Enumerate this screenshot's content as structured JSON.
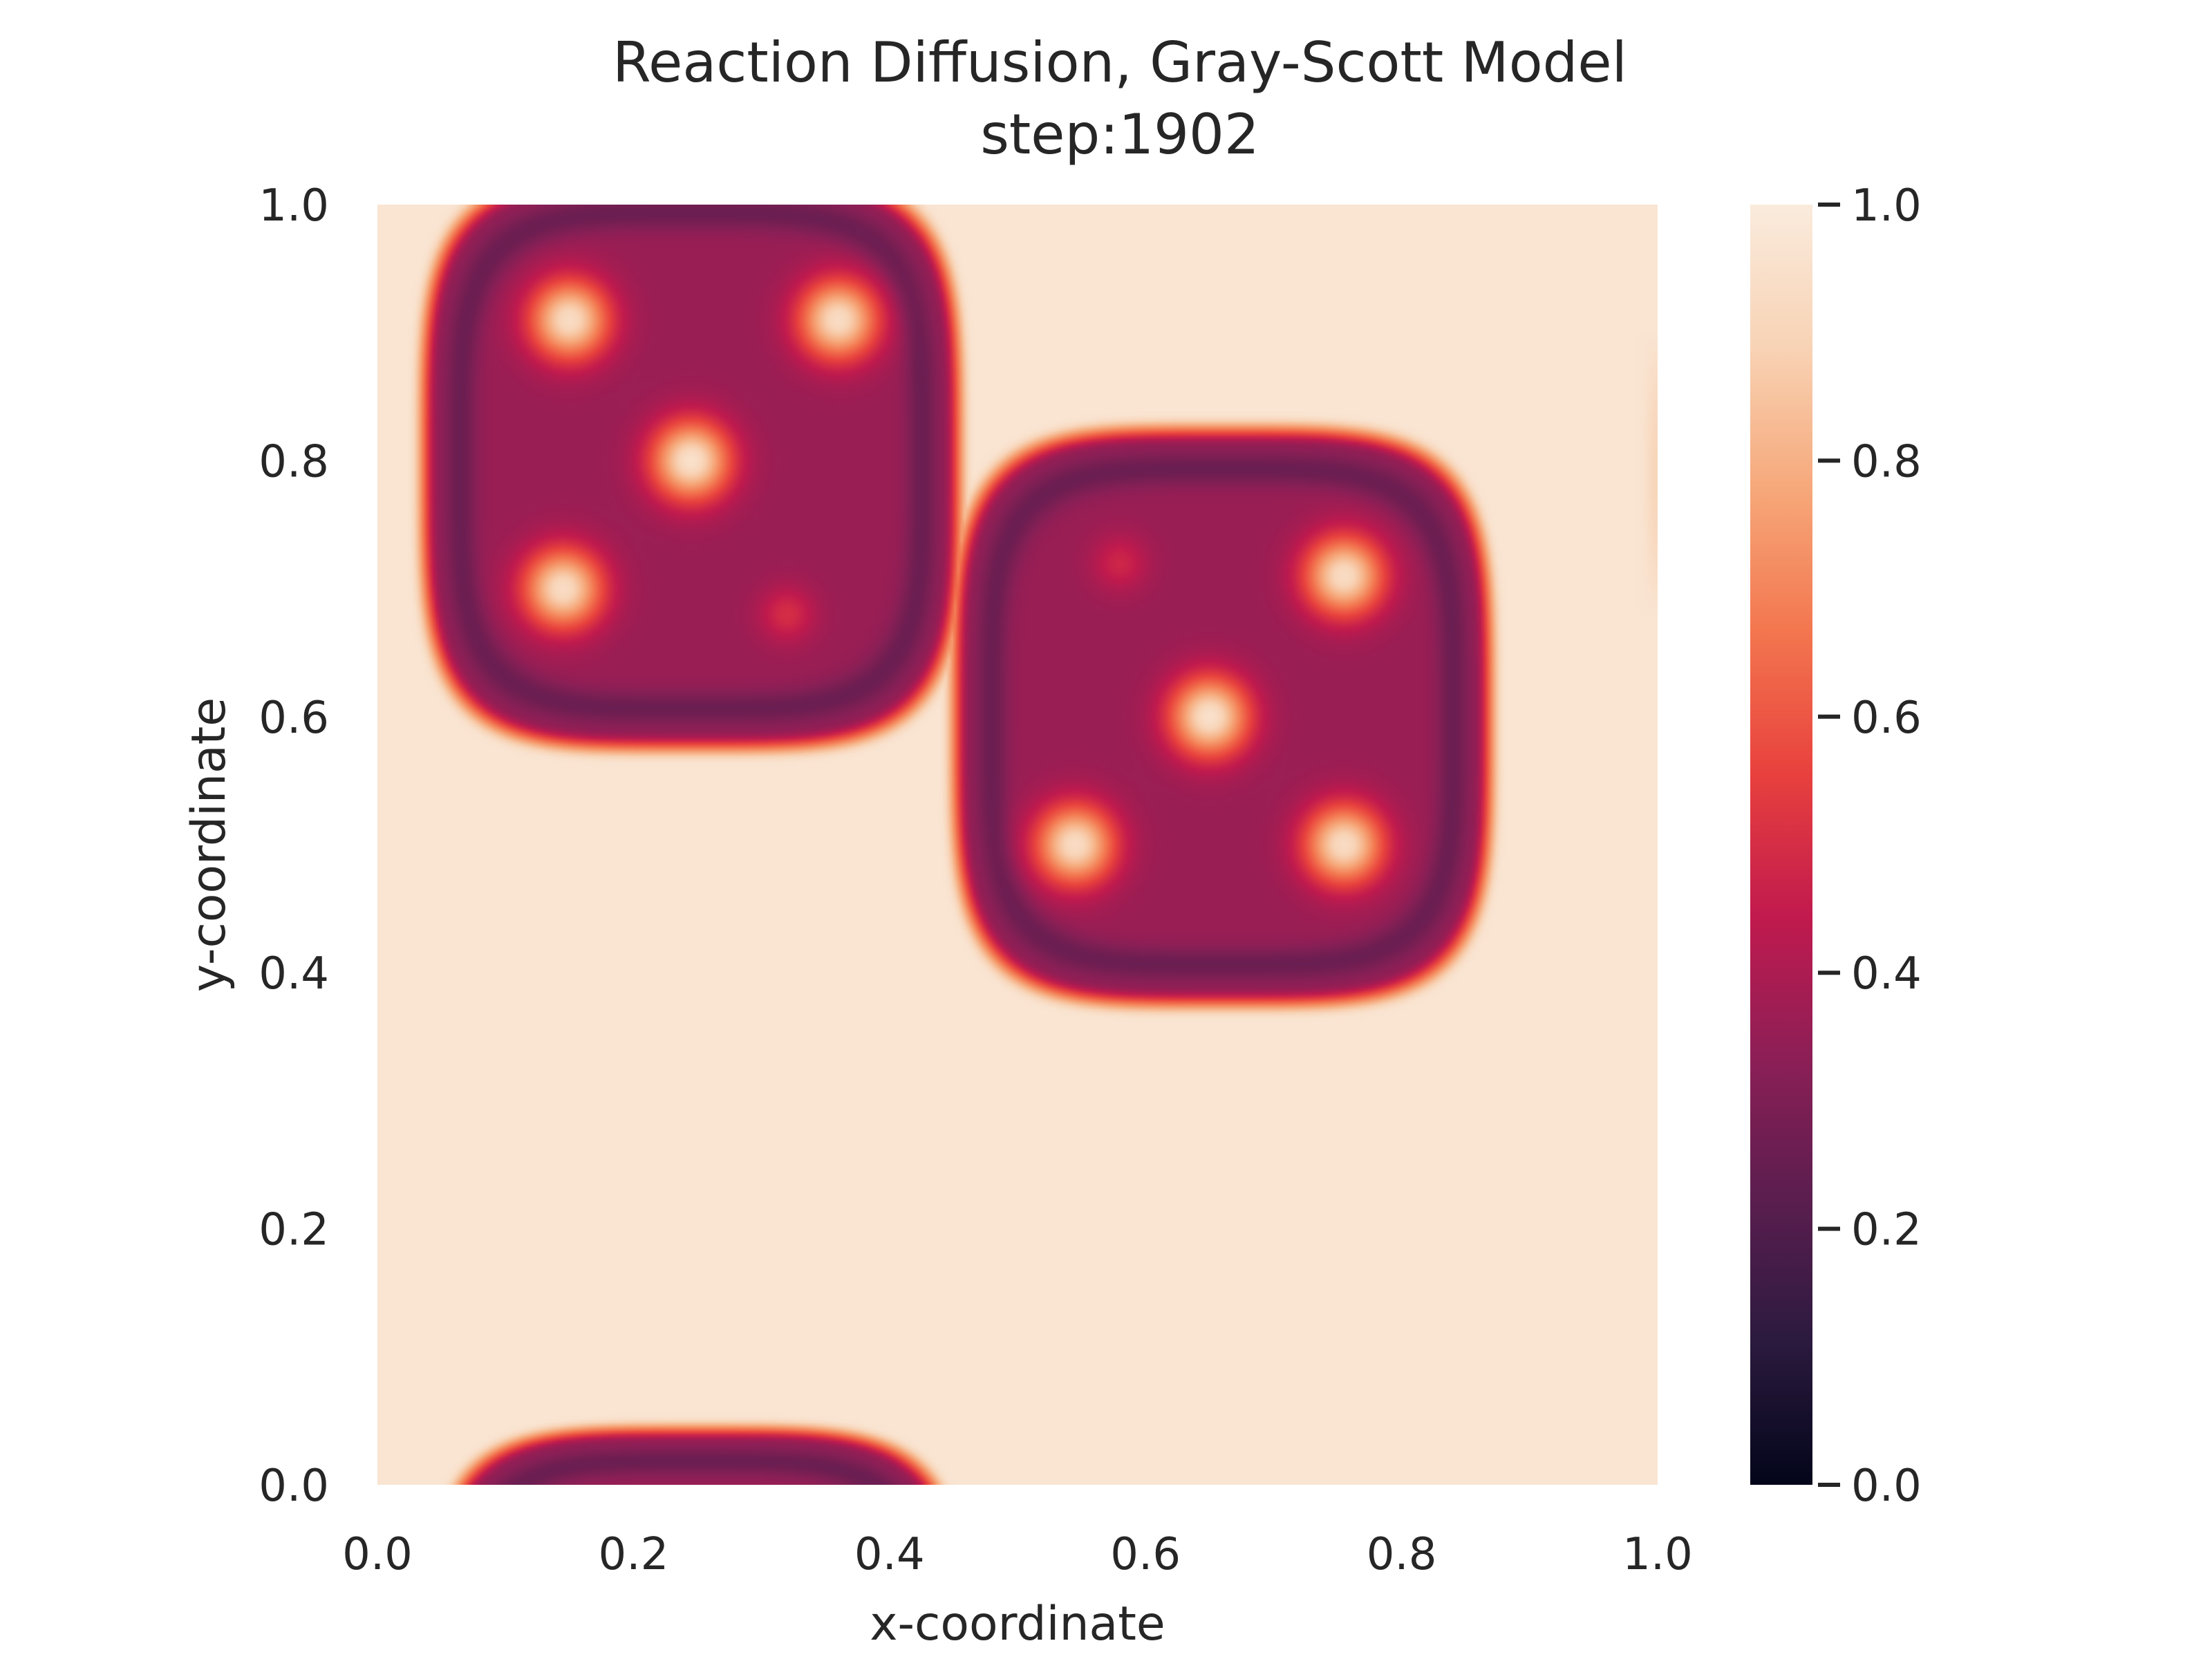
{
  "chart_data": {
    "type": "heatmap",
    "title": "Reaction Diffusion, Gray-Scott Model",
    "subtitle": "step:1902",
    "xlabel": "x-coordinate",
    "ylabel": "y-coordinate",
    "xlim": [
      0.0,
      1.0
    ],
    "ylim": [
      0.0,
      1.0
    ],
    "x_ticks": [
      "0.0",
      "0.2",
      "0.4",
      "0.6",
      "0.8",
      "1.0"
    ],
    "y_ticks": [
      "0.0",
      "0.2",
      "0.4",
      "0.6",
      "0.8",
      "1.0"
    ],
    "colorbar": {
      "range": [
        0.0,
        1.0
      ],
      "ticks": [
        "0.0",
        "0.2",
        "0.4",
        "0.6",
        "0.8",
        "1.0"
      ],
      "colormap": "rocket",
      "colors": [
        "#03051a",
        "#2b1a3e",
        "#5a1e4f",
        "#8c1f56",
        "#c11a4e",
        "#e8413d",
        "#f3764f",
        "#f6a87a",
        "#f8d3b5",
        "#faebdd"
      ]
    },
    "background_value": 0.97,
    "grid": false,
    "features": [
      {
        "name": "upper-left blob",
        "cx": 0.245,
        "cy": 0.8,
        "hx": 0.205,
        "hy": 0.22,
        "interior_value": 0.36,
        "ring_value": 0.26
      },
      {
        "name": "center-right blob",
        "cx": 0.66,
        "cy": 0.6,
        "hx": 0.205,
        "hy": 0.22,
        "interior_value": 0.36,
        "ring_value": 0.26
      },
      {
        "name": "bottom edge blob",
        "cx": 0.25,
        "cy": -0.14,
        "hx": 0.2,
        "hy": 0.18,
        "interior_value": 0.36,
        "ring_value": 0.26
      }
    ],
    "spots": [
      {
        "x": 0.15,
        "y": 0.91,
        "value": 0.93,
        "r": 0.035
      },
      {
        "x": 0.36,
        "y": 0.91,
        "value": 0.93,
        "r": 0.035
      },
      {
        "x": 0.245,
        "y": 0.8,
        "value": 0.95,
        "r": 0.035
      },
      {
        "x": 0.145,
        "y": 0.7,
        "value": 0.93,
        "r": 0.035
      },
      {
        "x": 0.32,
        "y": 0.68,
        "value": 0.5,
        "r": 0.025
      },
      {
        "x": 0.58,
        "y": 0.72,
        "value": 0.48,
        "r": 0.025
      },
      {
        "x": 0.755,
        "y": 0.71,
        "value": 0.93,
        "r": 0.035
      },
      {
        "x": 0.65,
        "y": 0.6,
        "value": 0.95,
        "r": 0.035
      },
      {
        "x": 0.545,
        "y": 0.5,
        "value": 0.93,
        "r": 0.035
      },
      {
        "x": 0.755,
        "y": 0.5,
        "value": 0.93,
        "r": 0.035
      }
    ],
    "right_edge_tint": {
      "y_range": [
        0.68,
        0.9
      ],
      "value": 0.9
    }
  }
}
